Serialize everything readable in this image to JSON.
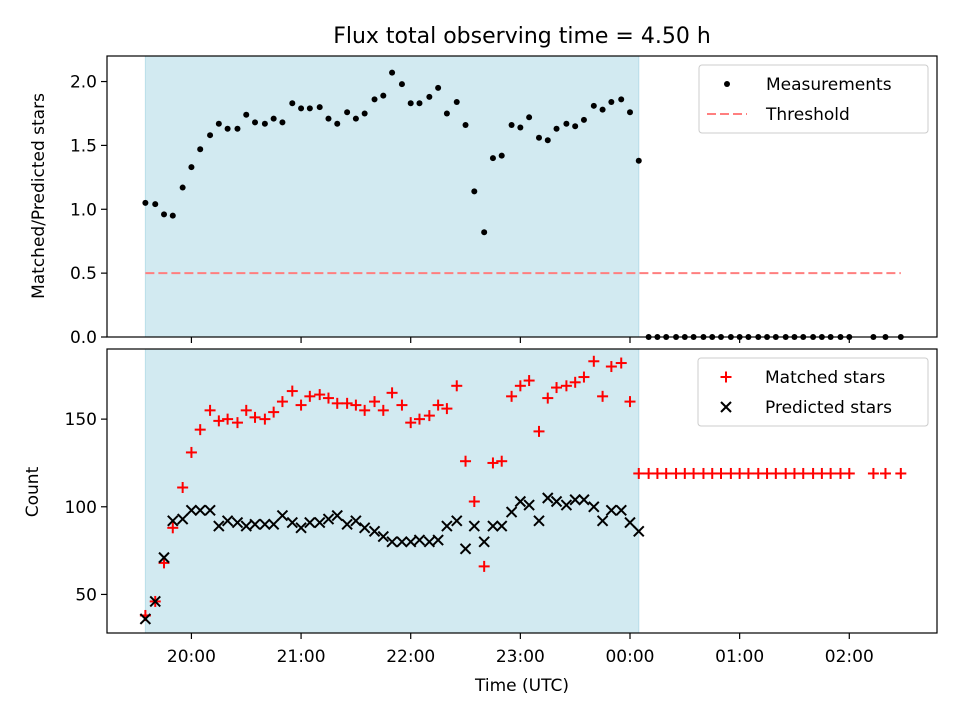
{
  "chart_data": [
    {
      "type": "scatter",
      "title": "Flux total observing time = 4.50 h",
      "ylabel": "Matched/Predicted stars",
      "xlabel": "",
      "x_unit": "hours (UTC, 24 = 00:00)",
      "xlim": [
        19.23,
        26.8
      ],
      "ylim": [
        0,
        2.2
      ],
      "yticks": [
        "0.0",
        "0.5",
        "1.0",
        "1.5",
        "2.0"
      ],
      "legend_position": "upper right",
      "shaded_span": [
        19.58,
        24.08
      ],
      "shade_color": "#add8e6",
      "series": [
        {
          "name": "Measurements",
          "kind": "points",
          "color": "#000000",
          "x": [
            19.58,
            19.67,
            19.75,
            19.83,
            19.92,
            20.0,
            20.08,
            20.17,
            20.25,
            20.33,
            20.42,
            20.5,
            20.58,
            20.67,
            20.75,
            20.83,
            20.92,
            21.0,
            21.08,
            21.17,
            21.25,
            21.33,
            21.42,
            21.5,
            21.58,
            21.67,
            21.75,
            21.83,
            21.92,
            22.0,
            22.08,
            22.17,
            22.25,
            22.33,
            22.42,
            22.5,
            22.58,
            22.67,
            22.75,
            22.83,
            22.92,
            23.0,
            23.08,
            23.17,
            23.25,
            23.33,
            23.42,
            23.5,
            23.58,
            23.67,
            23.75,
            23.83,
            23.92,
            24.0,
            24.08,
            24.17,
            24.25,
            24.33,
            24.42,
            24.5,
            24.58,
            24.67,
            24.75,
            24.83,
            24.92,
            25.0,
            25.08,
            25.17,
            25.25,
            25.33,
            25.42,
            25.5,
            25.58,
            25.67,
            25.75,
            25.83,
            25.92,
            26.0,
            26.22,
            26.33,
            26.47
          ],
          "values": [
            1.05,
            1.04,
            0.96,
            0.95,
            1.17,
            1.33,
            1.47,
            1.58,
            1.67,
            1.63,
            1.63,
            1.74,
            1.68,
            1.67,
            1.71,
            1.68,
            1.83,
            1.79,
            1.79,
            1.8,
            1.71,
            1.67,
            1.76,
            1.71,
            1.75,
            1.86,
            1.89,
            2.07,
            1.98,
            1.83,
            1.83,
            1.88,
            1.95,
            1.75,
            1.84,
            1.66,
            1.14,
            0.82,
            1.4,
            1.42,
            1.66,
            1.64,
            1.72,
            1.56,
            1.54,
            1.63,
            1.67,
            1.65,
            1.7,
            1.81,
            1.78,
            1.84,
            1.86,
            1.76,
            1.38,
            0,
            0,
            0,
            0,
            0,
            0,
            0,
            0,
            0,
            0,
            0,
            0,
            0,
            0,
            0,
            0,
            0,
            0,
            0,
            0,
            0,
            0,
            0,
            0,
            0,
            0
          ]
        },
        {
          "name": "Threshold",
          "kind": "dashed-line",
          "color": "#ff7f7f",
          "x": [
            19.58,
            26.47
          ],
          "values": [
            0.5,
            0.5
          ]
        }
      ]
    },
    {
      "type": "scatter",
      "title": "",
      "ylabel": "Count",
      "xlabel": "Time (UTC)",
      "x_unit": "hours (UTC, 24 = 00:00)",
      "xlim": [
        19.23,
        26.8
      ],
      "ylim": [
        28,
        190
      ],
      "yticks": [
        "50",
        "100",
        "150"
      ],
      "xticks": [
        {
          "x": 20,
          "label": "20:00"
        },
        {
          "x": 21,
          "label": "21:00"
        },
        {
          "x": 22,
          "label": "22:00"
        },
        {
          "x": 23,
          "label": "23:00"
        },
        {
          "x": 24,
          "label": "00:00"
        },
        {
          "x": 25,
          "label": "01:00"
        },
        {
          "x": 26,
          "label": "02:00"
        }
      ],
      "legend_position": "upper right",
      "shaded_span": [
        19.58,
        24.08
      ],
      "shade_color": "#add8e6",
      "series": [
        {
          "name": "Matched stars",
          "kind": "plus",
          "color": "#ff0000",
          "x": [
            19.58,
            19.67,
            19.75,
            19.83,
            19.92,
            20.0,
            20.08,
            20.17,
            20.25,
            20.33,
            20.42,
            20.5,
            20.58,
            20.67,
            20.75,
            20.83,
            20.92,
            21.0,
            21.08,
            21.17,
            21.25,
            21.33,
            21.42,
            21.5,
            21.58,
            21.67,
            21.75,
            21.83,
            21.92,
            22.0,
            22.08,
            22.17,
            22.25,
            22.33,
            22.42,
            22.5,
            22.58,
            22.67,
            22.75,
            22.83,
            22.92,
            23.0,
            23.08,
            23.17,
            23.25,
            23.33,
            23.42,
            23.5,
            23.58,
            23.67,
            23.75,
            23.83,
            23.92,
            24.0,
            24.08,
            24.17,
            24.25,
            24.33,
            24.42,
            24.5,
            24.58,
            24.67,
            24.75,
            24.83,
            24.92,
            25.0,
            25.08,
            25.17,
            25.25,
            25.33,
            25.42,
            25.5,
            25.58,
            25.67,
            25.75,
            25.83,
            25.92,
            26.0,
            26.22,
            26.33,
            26.47
          ],
          "values": [
            38,
            46,
            68,
            88,
            111,
            131,
            144,
            155,
            149,
            150,
            148,
            155,
            151,
            150,
            154,
            160,
            166,
            158,
            163,
            164,
            162,
            159,
            159,
            158,
            155,
            160,
            155,
            165,
            158,
            148,
            150,
            152,
            158,
            156,
            169,
            126,
            103,
            66,
            125,
            126,
            163,
            169,
            172,
            143,
            162,
            168,
            169,
            171,
            174,
            183,
            163,
            180,
            182,
            160,
            119,
            119,
            119,
            119,
            119,
            119,
            119,
            119,
            119,
            119,
            119,
            119,
            119,
            119,
            119,
            119,
            119,
            119,
            119,
            119,
            119,
            119,
            119,
            119,
            119,
            119,
            119
          ]
        },
        {
          "name": "Predicted stars",
          "kind": "x",
          "color": "#000000",
          "x": [
            19.58,
            19.67,
            19.75,
            19.83,
            19.92,
            20.0,
            20.08,
            20.17,
            20.25,
            20.33,
            20.42,
            20.5,
            20.58,
            20.67,
            20.75,
            20.83,
            20.92,
            21.0,
            21.08,
            21.17,
            21.25,
            21.33,
            21.42,
            21.5,
            21.58,
            21.67,
            21.75,
            21.83,
            21.92,
            22.0,
            22.08,
            22.17,
            22.25,
            22.33,
            22.42,
            22.5,
            22.58,
            22.67,
            22.75,
            22.83,
            22.92,
            23.0,
            23.08,
            23.17,
            23.25,
            23.33,
            23.42,
            23.5,
            23.58,
            23.67,
            23.75,
            23.83,
            23.92,
            24.0,
            24.08
          ],
          "values": [
            36,
            46,
            71,
            92,
            93,
            98,
            98,
            98,
            89,
            92,
            91,
            89,
            90,
            90,
            90,
            95,
            91,
            88,
            91,
            91,
            93,
            95,
            90,
            92,
            88,
            86,
            83,
            80,
            80,
            80,
            81,
            80,
            81,
            89,
            92,
            76,
            89,
            80,
            89,
            89,
            97,
            103,
            101,
            92,
            105,
            103,
            101,
            104,
            104,
            100,
            92,
            98,
            98,
            91,
            86
          ]
        }
      ]
    }
  ]
}
